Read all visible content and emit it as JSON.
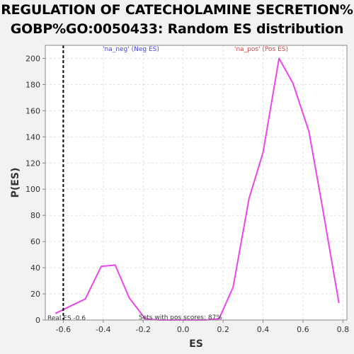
{
  "chart_data": {
    "type": "line",
    "title": "REGULATION OF CATECHOLAMINE SECRETION%",
    "subtitle": "GOBP%GO:0050433: Random ES distribution",
    "xlabel": "ES",
    "ylabel": "P(ES)",
    "xlim": [
      -0.69,
      0.82
    ],
    "ylim": [
      0,
      210
    ],
    "grid": true,
    "x_ticks": [
      "-0.6",
      "-0.4",
      "-0.2",
      "0.0",
      "0.2",
      "0.4",
      "0.6",
      "0.8"
    ],
    "x_tick_values": [
      -0.6,
      -0.4,
      -0.2,
      0.0,
      0.2,
      0.4,
      0.6,
      0.8
    ],
    "y_ticks": [
      "0",
      "20",
      "40",
      "60",
      "80",
      "100",
      "120",
      "140",
      "160",
      "180",
      "200"
    ],
    "y_tick_values": [
      0,
      20,
      40,
      60,
      80,
      100,
      120,
      140,
      160,
      180,
      200
    ],
    "series": [
      {
        "color": "#ee44ee",
        "x": [
          -0.64,
          -0.56,
          -0.49,
          -0.41,
          -0.34,
          -0.27,
          -0.19,
          -0.12,
          -0.04,
          0.03,
          0.11,
          0.18,
          0.25,
          0.33,
          0.4,
          0.48,
          0.55,
          0.63,
          0.7,
          0.78
        ],
        "y": [
          5,
          11,
          16,
          41,
          42,
          17,
          1,
          0,
          0,
          0,
          0,
          1,
          25,
          93,
          128,
          200,
          181,
          144,
          84,
          13
        ]
      }
    ],
    "real_es": {
      "value": -0.6,
      "label": "Real ES -0.6",
      "color": "#000000",
      "style": "dashed"
    },
    "annotations": {
      "pos_scores": "Sets with pos scores: 87%"
    },
    "legend": {
      "neg": {
        "label": "'na_neg' (Neg ES)",
        "color": "#4444dd"
      },
      "pos": {
        "label": "'na_pos' (Pos ES)",
        "color": "#dd4444"
      }
    },
    "colors": {
      "page_background": "#f2f2f2",
      "plot_background": "#ffffff",
      "grid": "#e0e0e0",
      "frame": "#888888"
    }
  }
}
